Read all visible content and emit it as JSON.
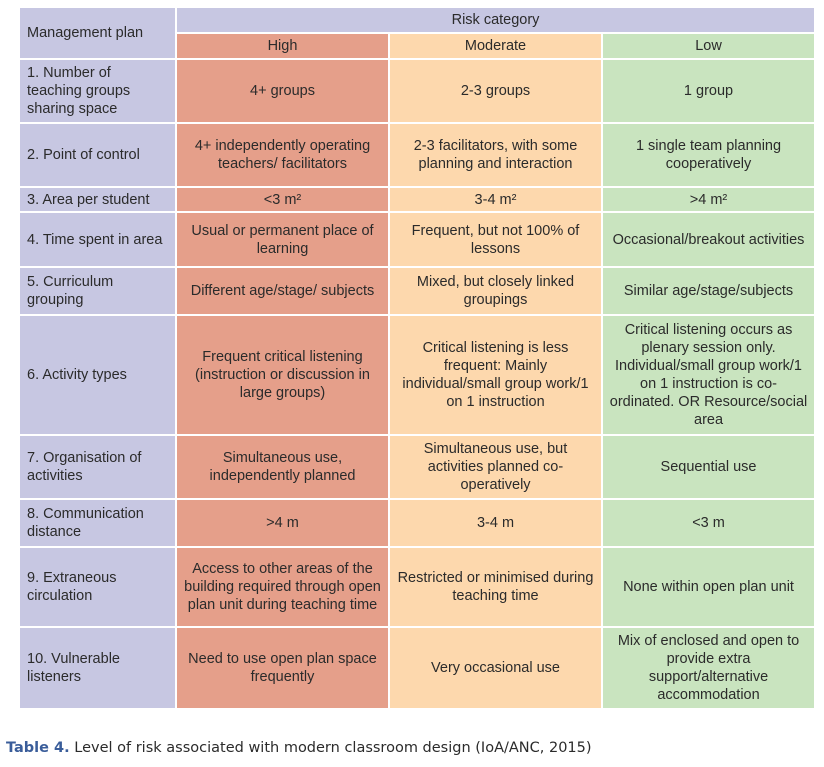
{
  "table": {
    "plan_header": "Management plan",
    "risk_header": "Risk category",
    "levels": [
      "High",
      "Moderate",
      "Low"
    ],
    "rows": [
      {
        "label": "1. Number of teaching groups sharing space",
        "high": "4+ groups",
        "moderate": "2-3 groups",
        "low": "1 group"
      },
      {
        "label": "2. Point of control",
        "high": "4+ independently operating teachers/ facilitators",
        "moderate": "2-3 facilitators, with some planning and interaction",
        "low": "1 single team planning cooperatively"
      },
      {
        "label": "3. Area per student",
        "high": "<3 m²",
        "moderate": "3-4 m²",
        "low": ">4 m²"
      },
      {
        "label": "4. Time spent in area",
        "high": "Usual or permanent place of learning",
        "moderate": "Frequent, but not 100% of lessons",
        "low": "Occasional/breakout activities"
      },
      {
        "label": "5. Curriculum grouping",
        "high": "Different age/stage/ subjects",
        "moderate": "Mixed, but closely linked groupings",
        "low": "Similar age/stage/subjects"
      },
      {
        "label": "6. Activity types",
        "high": "Frequent critical listening (instruction or discussion in large groups)",
        "moderate": "Critical listening is less frequent: Mainly individual/small group work/1 on 1 instruction",
        "low": "Critical listening occurs as plenary session only. Individual/small group work/1 on 1 instruction is co-ordinated. OR Resource/social area"
      },
      {
        "label": "7. Organisation of activities",
        "high": "Simultaneous use, independently planned",
        "moderate": "Simultaneous use, but activities planned co-operatively",
        "low": "Sequential use"
      },
      {
        "label": "8. Communication distance",
        "high": ">4 m",
        "moderate": "3-4 m",
        "low": "<3 m"
      },
      {
        "label": "9. Extraneous circulation",
        "high": "Access to other areas of the building required through open plan unit during teaching time",
        "moderate": "Restricted or minimised during teaching time",
        "low": "None within open plan unit"
      },
      {
        "label": "10. Vulnerable listeners",
        "high": "Need to use open plan space frequently",
        "moderate": "Very occasional use",
        "low": "Mix of enclosed and open to provide extra support/alternative accommodation"
      }
    ]
  },
  "caption": {
    "number": "Table 4.",
    "text": " Level of risk associated with modern classroom design (IoA/ANC, 2015)"
  }
}
